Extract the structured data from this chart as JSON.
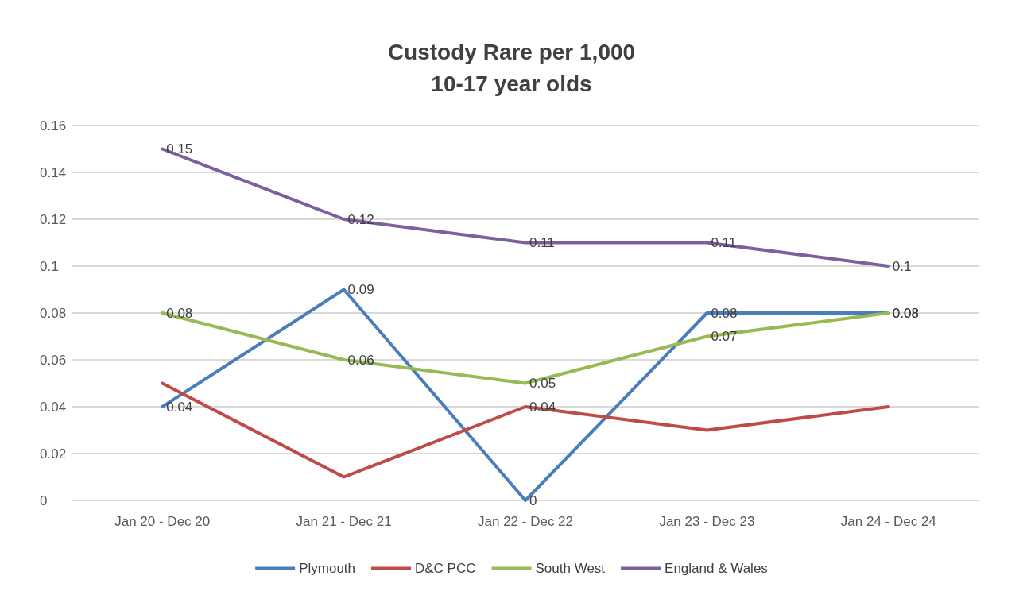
{
  "chart_data": {
    "type": "line",
    "title": "Custody Rare per 1,000\n10-17 year olds",
    "categories": [
      "Jan 20 - Dec 20",
      "Jan 21 - Dec 21",
      "Jan 22 - Dec 22",
      "Jan 23 - Dec 23",
      "Jan 24 - Dec 24"
    ],
    "series": [
      {
        "name": "Plymouth",
        "color": "#4a7ebb",
        "values": [
          0.04,
          0.09,
          0,
          0.08,
          0.08
        ],
        "value_labels": [
          "0.04",
          "0.09",
          "0",
          "0.08",
          "0.08"
        ]
      },
      {
        "name": "D&C PCC",
        "color": "#be4b48",
        "values": [
          0.05,
          0.01,
          0.04,
          0.03,
          0.04
        ],
        "value_labels": [
          null,
          null,
          "0.04",
          null,
          null
        ]
      },
      {
        "name": "South West",
        "color": "#98b954",
        "values": [
          0.08,
          0.06,
          0.05,
          0.07,
          0.08
        ],
        "value_labels": [
          "0.08",
          "0.06",
          "0.05",
          "0.07",
          "0.08"
        ]
      },
      {
        "name": "England & Wales",
        "color": "#7d5fa0",
        "values": [
          0.15,
          0.12,
          0.11,
          0.11,
          0.1
        ],
        "value_labels": [
          "0.15",
          "0.12",
          "0.11",
          "0.11",
          "0.1"
        ]
      }
    ],
    "ylim": [
      0,
      0.16
    ],
    "yticks": [
      0,
      0.02,
      0.04,
      0.06,
      0.08,
      0.1,
      0.12,
      0.14,
      0.16
    ],
    "grid": "y",
    "legend": "bottom",
    "marker": "none",
    "line_style": "solid"
  }
}
